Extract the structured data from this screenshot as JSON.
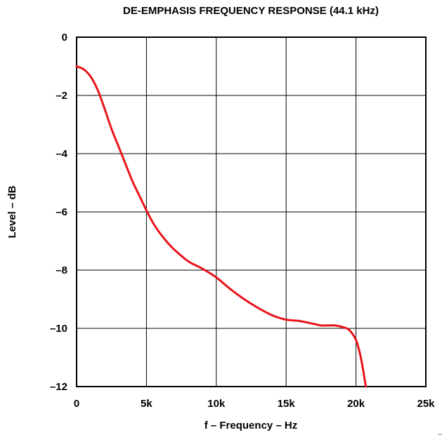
{
  "chart_data": {
    "type": "line",
    "title": "DE-EMPHASIS FREQUENCY RESPONSE (44.1 kHz)",
    "xlabel": "f – Frequency – Hz",
    "ylabel": "Level – dB",
    "xlim": [
      0,
      25000
    ],
    "ylim": [
      -12,
      0
    ],
    "xticks": [
      0,
      5000,
      10000,
      15000,
      20000,
      25000
    ],
    "xtick_labels": [
      "0",
      "5k",
      "10k",
      "15k",
      "20k",
      "25k"
    ],
    "yticks": [
      0,
      -2,
      -4,
      -6,
      -8,
      -10,
      -12
    ],
    "ytick_labels": [
      "0",
      "–2",
      "–4",
      "–6",
      "–8",
      "–10",
      "–12"
    ],
    "grid": true,
    "series": [
      {
        "color": "#e8141b",
        "x": [
          0,
          500,
          1000,
          1500,
          2000,
          2500,
          3000,
          3500,
          4000,
          4500,
          5000,
          5500,
          6000,
          6500,
          7000,
          8000,
          9000,
          10000,
          11000,
          12000,
          13000,
          14000,
          15000,
          16000,
          17000,
          17500,
          18000,
          18500,
          19000,
          19500,
          20000,
          20300,
          20500,
          20700
        ],
        "y": [
          -1.0,
          -1.1,
          -1.35,
          -1.8,
          -2.45,
          -3.15,
          -3.75,
          -4.35,
          -4.95,
          -5.45,
          -5.95,
          -6.4,
          -6.75,
          -7.05,
          -7.3,
          -7.7,
          -7.95,
          -8.25,
          -8.65,
          -9.0,
          -9.3,
          -9.55,
          -9.7,
          -9.75,
          -9.85,
          -9.9,
          -9.9,
          -9.9,
          -9.95,
          -10.05,
          -10.4,
          -10.9,
          -11.4,
          -12.0
        ]
      }
    ]
  },
  "corner_mark": "G"
}
